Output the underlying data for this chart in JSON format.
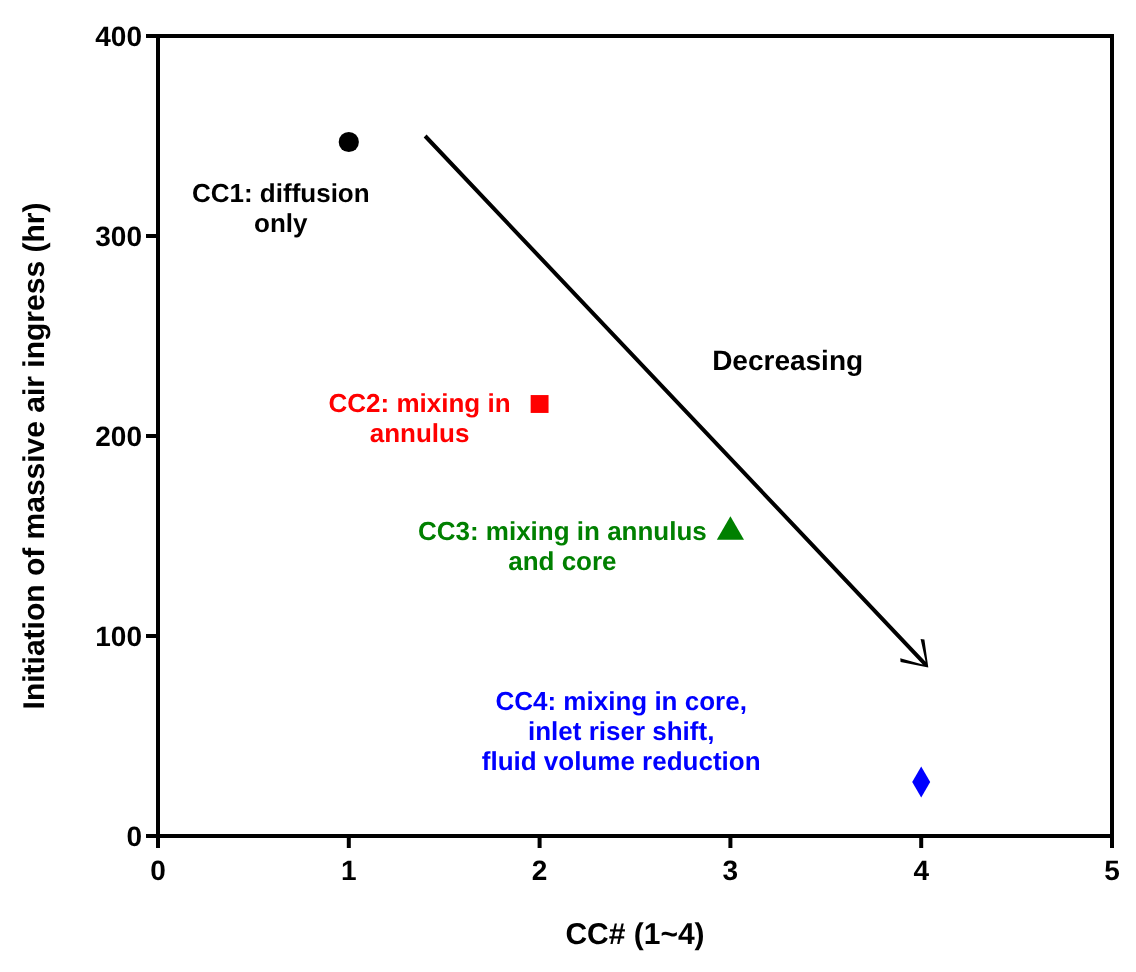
{
  "chart_data": {
    "type": "scatter",
    "xlabel": "CC# (1~4)",
    "ylabel": "Initiation of massive air ingress (hr)",
    "xlim": [
      0,
      5
    ],
    "xticks": [
      0,
      1,
      2,
      3,
      4,
      5
    ],
    "ylim": [
      0,
      400
    ],
    "yticks": [
      0,
      100,
      200,
      300,
      400
    ],
    "grid": false,
    "series": [
      {
        "name": "CC1: diffusion\nonly",
        "color": "#000000",
        "marker": "circle",
        "x": [
          1
        ],
        "values": [
          347
        ]
      },
      {
        "name": "CC2: mixing in\nannulus",
        "color": "#ff0000",
        "marker": "square",
        "x": [
          2
        ],
        "values": [
          216
        ]
      },
      {
        "name": "CC3: mixing in annulus\nand core",
        "color": "#008000",
        "marker": "triangle",
        "x": [
          3
        ],
        "values": [
          152
        ]
      },
      {
        "name": "CC4: mixing in core,\ninlet riser shift,\nfluid volume reduction",
        "color": "#0000ff",
        "marker": "diamond",
        "x": [
          4
        ],
        "values": [
          27
        ]
      }
    ],
    "annotations": [
      "Decreasing"
    ]
  }
}
